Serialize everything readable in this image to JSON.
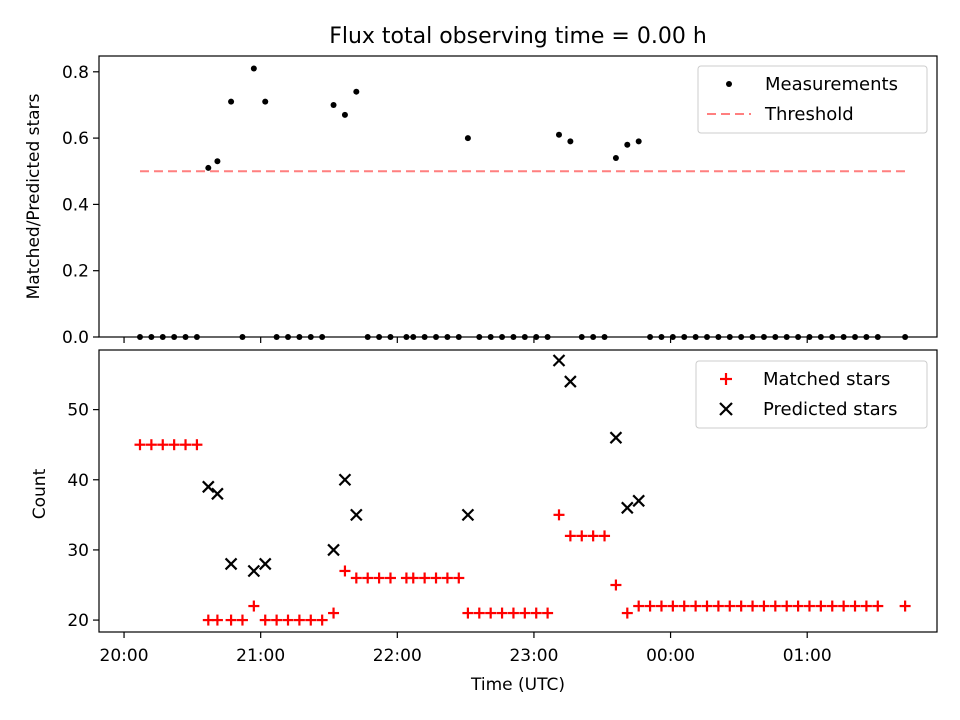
{
  "chart_data": [
    {
      "type": "scatter",
      "title": "Flux total observing time = 0.00 h",
      "ylabel": "Matched/Predicted stars",
      "xlabel": "",
      "ylim": [
        0,
        0.85
      ],
      "yticks": [
        "0.0",
        "0.2",
        "0.4",
        "0.6",
        "0.8"
      ],
      "legend": {
        "placement": "upper-right",
        "entries": [
          {
            "label": "Measurements",
            "marker": "dot",
            "color": "#000000"
          },
          {
            "label": "Threshold",
            "marker": "dashed-line",
            "color": "#ff7f7f"
          }
        ]
      },
      "threshold": {
        "name": "Threshold",
        "value": 0.5,
        "x_start": "20:07",
        "x_end": "01:43",
        "color": "#ff7f7f"
      },
      "series": [
        {
          "name": "Measurements",
          "color": "#000000",
          "points": [
            {
              "x": "20:07",
              "y": 0.0
            },
            {
              "x": "20:12",
              "y": 0.0
            },
            {
              "x": "20:17",
              "y": 0.0
            },
            {
              "x": "20:22",
              "y": 0.0
            },
            {
              "x": "20:27",
              "y": 0.0
            },
            {
              "x": "20:32",
              "y": 0.0
            },
            {
              "x": "20:37",
              "y": 0.51
            },
            {
              "x": "20:41",
              "y": 0.53
            },
            {
              "x": "20:47",
              "y": 0.71
            },
            {
              "x": "20:52",
              "y": 0.0
            },
            {
              "x": "20:57",
              "y": 0.81
            },
            {
              "x": "21:02",
              "y": 0.71
            },
            {
              "x": "21:07",
              "y": 0.0
            },
            {
              "x": "21:12",
              "y": 0.0
            },
            {
              "x": "21:17",
              "y": 0.0
            },
            {
              "x": "21:22",
              "y": 0.0
            },
            {
              "x": "21:27",
              "y": 0.0
            },
            {
              "x": "21:32",
              "y": 0.7
            },
            {
              "x": "21:37",
              "y": 0.67
            },
            {
              "x": "21:42",
              "y": 0.74
            },
            {
              "x": "21:47",
              "y": 0.0
            },
            {
              "x": "21:52",
              "y": 0.0
            },
            {
              "x": "21:57",
              "y": 0.0
            },
            {
              "x": "22:04",
              "y": 0.0
            },
            {
              "x": "22:07",
              "y": 0.0
            },
            {
              "x": "22:12",
              "y": 0.0
            },
            {
              "x": "22:17",
              "y": 0.0
            },
            {
              "x": "22:22",
              "y": 0.0
            },
            {
              "x": "22:27",
              "y": 0.0
            },
            {
              "x": "22:31",
              "y": 0.6
            },
            {
              "x": "22:36",
              "y": 0.0
            },
            {
              "x": "22:41",
              "y": 0.0
            },
            {
              "x": "22:46",
              "y": 0.0
            },
            {
              "x": "22:51",
              "y": 0.0
            },
            {
              "x": "22:56",
              "y": 0.0
            },
            {
              "x": "23:01",
              "y": 0.0
            },
            {
              "x": "23:06",
              "y": 0.0
            },
            {
              "x": "23:11",
              "y": 0.61
            },
            {
              "x": "23:16",
              "y": 0.59
            },
            {
              "x": "23:21",
              "y": 0.0
            },
            {
              "x": "23:26",
              "y": 0.0
            },
            {
              "x": "23:31",
              "y": 0.0
            },
            {
              "x": "23:36",
              "y": 0.54
            },
            {
              "x": "23:41",
              "y": 0.58
            },
            {
              "x": "23:46",
              "y": 0.59
            },
            {
              "x": "23:51",
              "y": 0.0
            },
            {
              "x": "23:56",
              "y": 0.0
            },
            {
              "x": "00:01",
              "y": 0.0
            },
            {
              "x": "00:06",
              "y": 0.0
            },
            {
              "x": "00:11",
              "y": 0.0
            },
            {
              "x": "00:16",
              "y": 0.0
            },
            {
              "x": "00:21",
              "y": 0.0
            },
            {
              "x": "00:26",
              "y": 0.0
            },
            {
              "x": "00:31",
              "y": 0.0
            },
            {
              "x": "00:36",
              "y": 0.0
            },
            {
              "x": "00:41",
              "y": 0.0
            },
            {
              "x": "00:46",
              "y": 0.0
            },
            {
              "x": "00:51",
              "y": 0.0
            },
            {
              "x": "00:56",
              "y": 0.0
            },
            {
              "x": "01:01",
              "y": 0.0
            },
            {
              "x": "01:06",
              "y": 0.0
            },
            {
              "x": "01:11",
              "y": 0.0
            },
            {
              "x": "01:16",
              "y": 0.0
            },
            {
              "x": "01:21",
              "y": 0.0
            },
            {
              "x": "01:26",
              "y": 0.0
            },
            {
              "x": "01:31",
              "y": 0.0
            },
            {
              "x": "01:43",
              "y": 0.0
            }
          ]
        }
      ]
    },
    {
      "type": "scatter",
      "title": "",
      "xlabel": "Time (UTC)",
      "ylabel": "Count",
      "xlim": [
        "19:49",
        "01:57"
      ],
      "xticks": [
        "20:00",
        "21:00",
        "22:00",
        "23:00",
        "00:00",
        "01:00"
      ],
      "ylim": [
        18.3,
        58.5
      ],
      "yticks": [
        "20",
        "30",
        "40",
        "50"
      ],
      "legend": {
        "placement": "upper-right",
        "entries": [
          {
            "label": "Matched stars",
            "marker": "plus",
            "color": "#ff0000"
          },
          {
            "label": "Predicted stars",
            "marker": "x",
            "color": "#000000"
          }
        ]
      },
      "series": [
        {
          "name": "Matched stars",
          "marker": "plus",
          "color": "#ff0000",
          "points": [
            {
              "x": "20:07",
              "y": 45
            },
            {
              "x": "20:12",
              "y": 45
            },
            {
              "x": "20:17",
              "y": 45
            },
            {
              "x": "20:22",
              "y": 45
            },
            {
              "x": "20:27",
              "y": 45
            },
            {
              "x": "20:32",
              "y": 45
            },
            {
              "x": "20:37",
              "y": 20
            },
            {
              "x": "20:41",
              "y": 20
            },
            {
              "x": "20:47",
              "y": 20
            },
            {
              "x": "20:52",
              "y": 20
            },
            {
              "x": "20:57",
              "y": 22
            },
            {
              "x": "21:02",
              "y": 20
            },
            {
              "x": "21:07",
              "y": 20
            },
            {
              "x": "21:12",
              "y": 20
            },
            {
              "x": "21:17",
              "y": 20
            },
            {
              "x": "21:22",
              "y": 20
            },
            {
              "x": "21:27",
              "y": 20
            },
            {
              "x": "21:32",
              "y": 21
            },
            {
              "x": "21:37",
              "y": 27
            },
            {
              "x": "21:42",
              "y": 26
            },
            {
              "x": "21:47",
              "y": 26
            },
            {
              "x": "21:52",
              "y": 26
            },
            {
              "x": "21:57",
              "y": 26
            },
            {
              "x": "22:04",
              "y": 26
            },
            {
              "x": "22:07",
              "y": 26
            },
            {
              "x": "22:12",
              "y": 26
            },
            {
              "x": "22:17",
              "y": 26
            },
            {
              "x": "22:22",
              "y": 26
            },
            {
              "x": "22:27",
              "y": 26
            },
            {
              "x": "22:31",
              "y": 21
            },
            {
              "x": "22:36",
              "y": 21
            },
            {
              "x": "22:41",
              "y": 21
            },
            {
              "x": "22:46",
              "y": 21
            },
            {
              "x": "22:51",
              "y": 21
            },
            {
              "x": "22:56",
              "y": 21
            },
            {
              "x": "23:01",
              "y": 21
            },
            {
              "x": "23:06",
              "y": 21
            },
            {
              "x": "23:11",
              "y": 35
            },
            {
              "x": "23:16",
              "y": 32
            },
            {
              "x": "23:21",
              "y": 32
            },
            {
              "x": "23:26",
              "y": 32
            },
            {
              "x": "23:31",
              "y": 32
            },
            {
              "x": "23:36",
              "y": 25
            },
            {
              "x": "23:41",
              "y": 21
            },
            {
              "x": "23:46",
              "y": 22
            },
            {
              "x": "23:51",
              "y": 22
            },
            {
              "x": "23:56",
              "y": 22
            },
            {
              "x": "00:01",
              "y": 22
            },
            {
              "x": "00:06",
              "y": 22
            },
            {
              "x": "00:11",
              "y": 22
            },
            {
              "x": "00:16",
              "y": 22
            },
            {
              "x": "00:21",
              "y": 22
            },
            {
              "x": "00:26",
              "y": 22
            },
            {
              "x": "00:31",
              "y": 22
            },
            {
              "x": "00:36",
              "y": 22
            },
            {
              "x": "00:41",
              "y": 22
            },
            {
              "x": "00:46",
              "y": 22
            },
            {
              "x": "00:51",
              "y": 22
            },
            {
              "x": "00:56",
              "y": 22
            },
            {
              "x": "01:01",
              "y": 22
            },
            {
              "x": "01:06",
              "y": 22
            },
            {
              "x": "01:11",
              "y": 22
            },
            {
              "x": "01:16",
              "y": 22
            },
            {
              "x": "01:21",
              "y": 22
            },
            {
              "x": "01:26",
              "y": 22
            },
            {
              "x": "01:31",
              "y": 22
            },
            {
              "x": "01:43",
              "y": 22
            }
          ]
        },
        {
          "name": "Predicted stars",
          "marker": "x",
          "color": "#000000",
          "points": [
            {
              "x": "20:37",
              "y": 39
            },
            {
              "x": "20:41",
              "y": 38
            },
            {
              "x": "20:47",
              "y": 28
            },
            {
              "x": "20:57",
              "y": 27
            },
            {
              "x": "21:02",
              "y": 28
            },
            {
              "x": "21:32",
              "y": 30
            },
            {
              "x": "21:37",
              "y": 40
            },
            {
              "x": "21:42",
              "y": 35
            },
            {
              "x": "22:31",
              "y": 35
            },
            {
              "x": "23:11",
              "y": 57
            },
            {
              "x": "23:16",
              "y": 54
            },
            {
              "x": "23:36",
              "y": 46
            },
            {
              "x": "23:41",
              "y": 36
            },
            {
              "x": "23:46",
              "y": 37
            }
          ]
        }
      ]
    }
  ]
}
